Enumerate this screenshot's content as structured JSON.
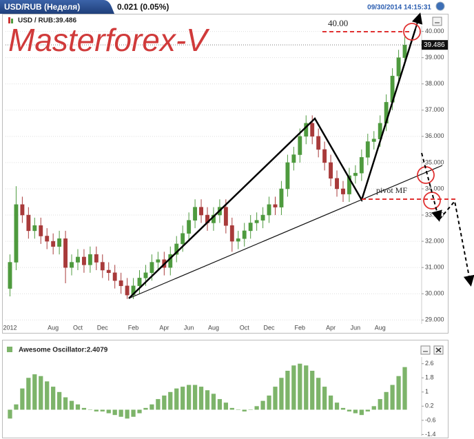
{
  "header": {
    "symbol": "USD/RUB (Неделя)",
    "change": "0.021 (0.05%)",
    "timestamp": "09/30/2014 14:15:31"
  },
  "chart_data": [
    {
      "type": "candlestick",
      "legend": "USD / RUB:39.486",
      "watermark": "Masterforex-V",
      "annotations": [
        "40.00",
        "pivot MF"
      ],
      "up_color": "#4e9a3e",
      "down_color": "#a83a3a",
      "categories": [
        "2012",
        null,
        null,
        null,
        null,
        null,
        null,
        "Aug",
        null,
        null,
        null,
        "Oct",
        null,
        null,
        null,
        "Dec",
        null,
        null,
        null,
        null,
        "Feb",
        null,
        null,
        null,
        null,
        "Apr",
        null,
        null,
        null,
        "Jun",
        null,
        null,
        null,
        "Aug",
        null,
        null,
        null,
        null,
        "Oct",
        null,
        null,
        null,
        "Dec",
        null,
        null,
        null,
        null,
        "Feb",
        null,
        null,
        null,
        null,
        "Apr",
        null,
        null,
        null,
        "Jun",
        null,
        null,
        null,
        "Aug",
        null,
        null,
        null,
        null
      ],
      "open": [
        30.2,
        31.2,
        33.4,
        33.0,
        32.4,
        32.6,
        32.2,
        32.0,
        31.8,
        32.1,
        31.0,
        31.2,
        31.4,
        31.1,
        31.5,
        31.2,
        30.9,
        30.8,
        30.5,
        30.3,
        29.95,
        30.3,
        30.6,
        30.8,
        31.2,
        31.3,
        31.0,
        31.5,
        31.9,
        32.3,
        32.8,
        33.3,
        33.0,
        32.7,
        33.0,
        33.3,
        32.6,
        32.0,
        32.1,
        32.4,
        32.7,
        32.8,
        33.0,
        33.4,
        33.3,
        34.0,
        35.0,
        35.3,
        36.0,
        36.5,
        36.0,
        35.5,
        35.0,
        34.4,
        34.0,
        33.8,
        34.5,
        34.6,
        35.2,
        35.8,
        35.9,
        36.5,
        37.3,
        38.3,
        39.0
      ],
      "high": [
        31.5,
        34.1,
        33.7,
        33.3,
        32.9,
        32.9,
        32.5,
        32.3,
        32.4,
        32.4,
        31.5,
        31.7,
        31.7,
        31.8,
        31.8,
        31.5,
        31.2,
        31.1,
        30.8,
        30.6,
        30.6,
        30.9,
        31.1,
        31.5,
        31.6,
        31.6,
        31.8,
        32.2,
        32.6,
        33.1,
        33.6,
        33.6,
        33.3,
        33.3,
        33.6,
        33.6,
        32.9,
        32.4,
        32.7,
        33.0,
        33.1,
        33.3,
        33.7,
        33.7,
        34.3,
        35.3,
        35.6,
        36.3,
        36.8,
        36.8,
        36.3,
        35.8,
        35.3,
        34.7,
        34.3,
        34.8,
        34.9,
        35.5,
        36.1,
        36.2,
        36.8,
        37.6,
        38.6,
        39.3,
        39.8
      ],
      "low": [
        29.9,
        30.9,
        32.7,
        32.1,
        32.1,
        31.9,
        31.7,
        31.5,
        31.5,
        30.4,
        30.7,
        30.9,
        30.8,
        30.8,
        30.9,
        30.6,
        30.5,
        30.2,
        30.0,
        29.8,
        29.8,
        30.0,
        30.3,
        30.5,
        30.9,
        30.7,
        30.7,
        31.2,
        31.6,
        32.0,
        32.5,
        32.7,
        32.4,
        32.4,
        32.7,
        32.3,
        31.6,
        31.7,
        31.8,
        32.1,
        32.4,
        32.5,
        32.7,
        33.0,
        33.0,
        33.7,
        34.7,
        35.0,
        35.7,
        35.7,
        35.2,
        34.7,
        34.1,
        33.7,
        33.5,
        33.5,
        34.2,
        34.3,
        34.9,
        35.5,
        35.6,
        36.2,
        37.0,
        38.0,
        38.7
      ],
      "close": [
        31.2,
        33.4,
        33.0,
        32.4,
        32.6,
        32.2,
        32.0,
        31.8,
        32.1,
        31.0,
        31.2,
        31.4,
        31.1,
        31.5,
        31.2,
        30.9,
        30.8,
        30.5,
        30.3,
        29.95,
        30.3,
        30.6,
        30.8,
        31.2,
        31.3,
        31.0,
        31.5,
        31.9,
        32.3,
        32.8,
        33.3,
        33.0,
        32.7,
        33.0,
        33.3,
        32.6,
        32.0,
        32.1,
        32.4,
        32.7,
        32.8,
        33.0,
        33.4,
        33.3,
        34.0,
        35.0,
        35.3,
        36.0,
        36.5,
        36.0,
        35.5,
        35.0,
        34.4,
        34.0,
        33.8,
        34.5,
        34.6,
        35.2,
        35.8,
        35.9,
        36.5,
        37.3,
        38.3,
        39.0,
        39.486
      ],
      "ylim": [
        28.85,
        40.2
      ],
      "yticks": [
        {
          "value": 29,
          "label": "29.000"
        },
        {
          "value": 30,
          "label": "30.000"
        },
        {
          "value": 31,
          "label": "31.000"
        },
        {
          "value": 32,
          "label": "32.000"
        },
        {
          "value": 33,
          "label": "33.000"
        },
        {
          "value": 34,
          "label": "34.000"
        },
        {
          "value": 35,
          "label": "35.000"
        },
        {
          "value": 36,
          "label": "36.000"
        },
        {
          "value": 37,
          "label": "37.000"
        },
        {
          "value": 38,
          "label": "38.000"
        },
        {
          "value": 39,
          "label": "39.000"
        },
        {
          "value": 40,
          "label": "40.000"
        }
      ],
      "grid": true
    },
    {
      "type": "bar",
      "title": "Awesome Oscillator:2.4079",
      "color": "#7db46a",
      "values": [
        -0.5,
        0.3,
        1.2,
        1.8,
        2.0,
        1.9,
        1.6,
        1.3,
        1.0,
        0.7,
        0.5,
        0.3,
        0.1,
        0.0,
        -0.1,
        -0.1,
        -0.2,
        -0.3,
        -0.4,
        -0.5,
        -0.4,
        -0.2,
        0.1,
        0.3,
        0.6,
        0.8,
        1.0,
        1.2,
        1.3,
        1.4,
        1.4,
        1.3,
        1.1,
        0.9,
        0.6,
        0.4,
        0.1,
        0.0,
        -0.1,
        0.0,
        0.2,
        0.5,
        0.8,
        1.3,
        1.8,
        2.2,
        2.5,
        2.6,
        2.5,
        2.2,
        1.8,
        1.3,
        0.8,
        0.4,
        0.1,
        -0.1,
        -0.2,
        -0.3,
        -0.1,
        0.2,
        0.6,
        1.0,
        1.4,
        1.9,
        2.4079
      ],
      "ylim": [
        -1.5,
        2.9
      ],
      "yticks": [
        2.6,
        1.8,
        1,
        0.2,
        -0.6,
        -1.4
      ]
    }
  ]
}
